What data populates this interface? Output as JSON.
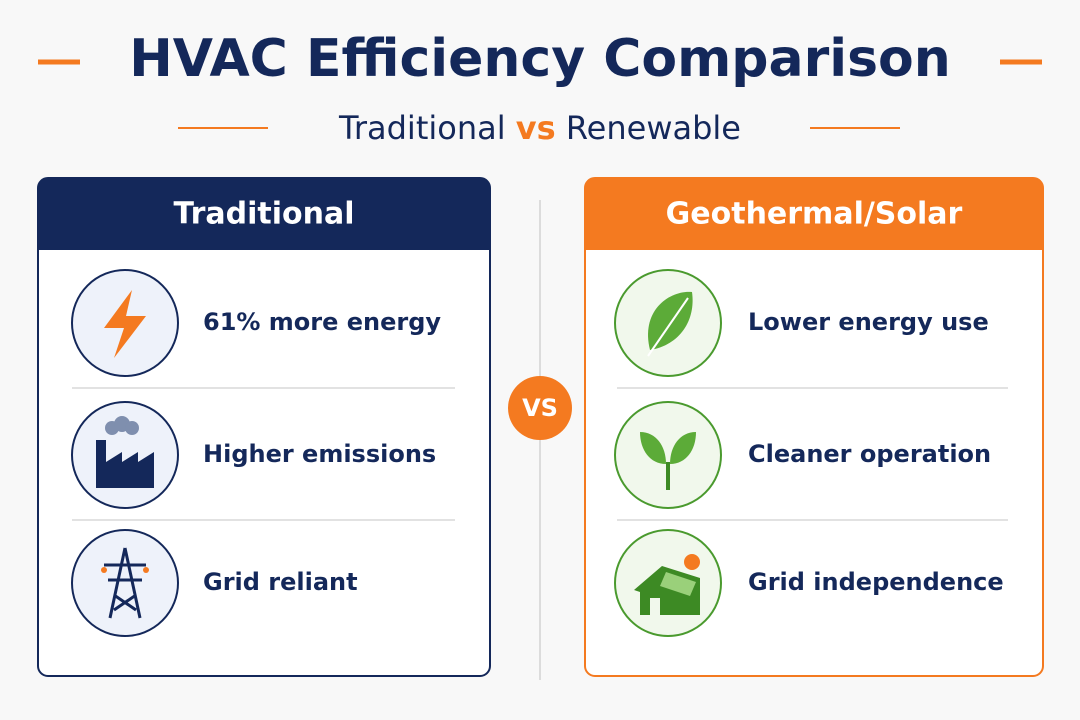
{
  "title": "HVAC Efficiency Comparison",
  "subtitle": {
    "left": "Traditional",
    "middle": "vs",
    "right": "Renewable"
  },
  "badge": "VS",
  "panels": [
    {
      "header": "Traditional",
      "items": [
        "61% more energy",
        "Higher emissions",
        "Grid reliant"
      ]
    },
    {
      "header": "Geothermal/Solar",
      "items": [
        "Lower energy use",
        "Cleaner operation",
        "Grid independence"
      ]
    }
  ]
}
